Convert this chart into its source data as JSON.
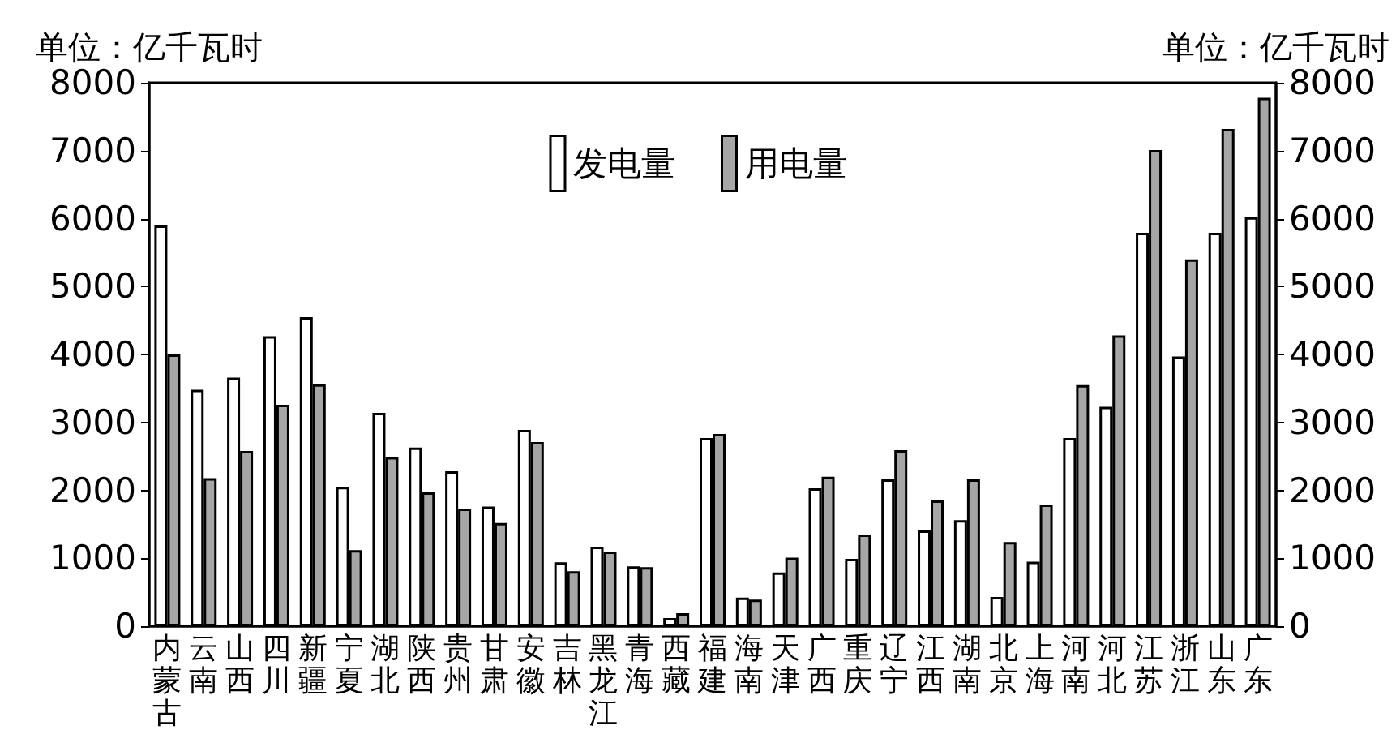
{
  "chart_data": {
    "type": "bar",
    "ylabel": "单位：亿千瓦时",
    "y2label": "单位：亿千瓦时",
    "categories": [
      "内蒙古",
      "云南",
      "山西",
      "四川",
      "新疆",
      "宁夏",
      "湖北",
      "陕西",
      "贵州",
      "甘肃",
      "安徽",
      "吉林",
      "黑龙江",
      "青海",
      "西藏",
      "福建",
      "海南",
      "天津",
      "广西",
      "重庆",
      "辽宁",
      "江西",
      "湖南",
      "北京",
      "上海",
      "河南",
      "河北",
      "江苏",
      "浙江",
      "山东",
      "广东"
    ],
    "series": [
      {
        "name": "发电量",
        "color": "#ffffff",
        "values": [
          5900,
          3480,
          3660,
          4270,
          4550,
          2050,
          3140,
          2630,
          2280,
          1760,
          2890,
          940,
          1170,
          880,
          120,
          2770,
          420,
          790,
          2030,
          990,
          2160,
          1410,
          1560,
          430,
          950,
          2770,
          3230,
          5790,
          3970,
          5790,
          6020
        ]
      },
      {
        "name": "用电量",
        "color": "#a6a6a6",
        "values": [
          4000,
          2180,
          2580,
          3260,
          3560,
          1120,
          2490,
          1970,
          1730,
          1520,
          2710,
          810,
          1100,
          870,
          190,
          2830,
          390,
          1010,
          2200,
          1350,
          2590,
          1850,
          2160,
          1240,
          1790,
          3550,
          4280,
          7010,
          5400,
          7320,
          7780
        ]
      }
    ],
    "ylim": [
      0,
      8000
    ],
    "yticks": [
      0,
      1000,
      2000,
      3000,
      4000,
      5000,
      6000,
      7000,
      8000
    ],
    "y2lim": [
      0,
      8000
    ],
    "y2ticks": [
      0,
      1000,
      2000,
      3000,
      4000,
      5000,
      6000,
      7000,
      8000
    ],
    "grid": false,
    "legend": "top"
  }
}
